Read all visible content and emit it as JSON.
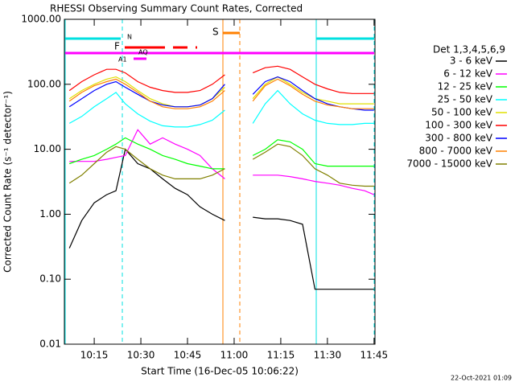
{
  "chart_data": {
    "type": "line",
    "title": "RHESSI Observing Summary Count Rates, Corrected",
    "x_label": "Start Time (16-Dec-05 10:06:22)",
    "y_label": "Corrected Count Rate (s⁻¹ detector⁻¹)",
    "legend_title": "Det 1,3,4,5,6,9",
    "footer": "22-Oct-2021 01:09",
    "log_y": true,
    "legend": "right",
    "flags": [
      {
        "label": "N",
        "color": "#00e0e0"
      },
      {
        "label": "F",
        "color": "#ff0000"
      },
      {
        "label": "AQ",
        "color": "#ff00ff"
      },
      {
        "label": "A1",
        "color": "#ff00ff"
      },
      {
        "label": "S",
        "color": "#ff8000"
      }
    ],
    "xlim": [
      605.4,
      705.3
    ],
    "xticks": [
      {
        "value": 615,
        "label": "10:15"
      },
      {
        "value": 630,
        "label": "10:30"
      },
      {
        "value": 645,
        "label": "10:45"
      },
      {
        "value": 660,
        "label": "11:00"
      },
      {
        "value": 675,
        "label": "11:15"
      },
      {
        "value": 690,
        "label": "11:30"
      },
      {
        "value": 705,
        "label": "11:45"
      }
    ],
    "ylim": [
      0.01,
      1000
    ],
    "yticks": [
      {
        "value": 0.01,
        "label": "0.01"
      },
      {
        "value": 0.1,
        "label": "0.10"
      },
      {
        "value": 1,
        "label": "1.00"
      },
      {
        "value": 10,
        "label": "10.00"
      },
      {
        "value": 100,
        "label": "100.00"
      },
      {
        "value": 1000,
        "label": "1000.00"
      }
    ],
    "x": [
      607,
      611,
      615,
      619,
      622,
      625,
      629,
      633,
      637,
      641,
      645,
      649,
      653,
      657,
      661,
      666,
      670,
      674,
      678,
      682,
      686,
      690,
      694,
      698,
      702,
      705
    ],
    "series": [
      {
        "name": "3 - 6 keV",
        "color": "#000000",
        "values": [
          0.3,
          0.8,
          1.5,
          2,
          2.3,
          10,
          6,
          5,
          3.5,
          2.5,
          2,
          1.3,
          1,
          0.8,
          null,
          0.9,
          0.85,
          0.85,
          0.8,
          0.7,
          0.07,
          0.07,
          0.07,
          0.07,
          0.07,
          0.07
        ]
      },
      {
        "name": "6 - 12 keV",
        "color": "#ff00ff",
        "values": [
          6.5,
          6.5,
          6.5,
          7,
          7.5,
          8,
          20,
          12,
          15,
          12,
          10,
          8,
          5,
          3.5,
          null,
          4,
          4,
          4,
          3.8,
          3.5,
          3.2,
          3,
          2.8,
          2.5,
          2.3,
          2
        ]
      },
      {
        "name": "12 - 25 keV",
        "color": "#00ff00",
        "values": [
          6,
          7,
          8,
          10,
          12,
          15,
          12,
          10,
          8,
          7,
          6,
          5.5,
          5,
          5,
          null,
          8,
          10,
          14,
          13,
          10,
          6,
          5.5,
          5.5,
          5.5,
          5.5,
          5.5
        ]
      },
      {
        "name": "25 - 50 keV",
        "color": "#00ffff",
        "values": [
          25,
          32,
          45,
          60,
          75,
          50,
          35,
          27,
          23,
          22,
          22,
          24,
          28,
          40,
          null,
          25,
          50,
          80,
          50,
          35,
          28,
          25,
          24,
          24,
          25,
          25
        ]
      },
      {
        "name": "50 - 100 keV",
        "color": "#e0e000",
        "values": [
          60,
          80,
          100,
          120,
          130,
          110,
          80,
          60,
          50,
          45,
          45,
          48,
          60,
          90,
          null,
          60,
          100,
          130,
          100,
          75,
          60,
          55,
          50,
          50,
          50,
          50
        ]
      },
      {
        "name": "100 - 300 keV",
        "color": "#ff0000",
        "values": [
          80,
          110,
          140,
          170,
          170,
          150,
          110,
          90,
          80,
          75,
          75,
          80,
          100,
          140,
          null,
          150,
          180,
          190,
          170,
          130,
          100,
          85,
          75,
          72,
          72,
          72
        ]
      },
      {
        "name": "300 - 800 keV",
        "color": "#0000ff",
        "values": [
          45,
          60,
          80,
          100,
          110,
          90,
          70,
          55,
          48,
          45,
          45,
          48,
          60,
          100,
          null,
          70,
          110,
          130,
          110,
          80,
          60,
          50,
          45,
          42,
          40,
          40
        ]
      },
      {
        "name": "800 - 7000 keV",
        "color": "#ff8000",
        "values": [
          55,
          75,
          95,
          110,
          120,
          100,
          75,
          55,
          45,
          42,
          42,
          45,
          55,
          80,
          null,
          55,
          95,
          120,
          95,
          70,
          55,
          48,
          45,
          42,
          42,
          42
        ]
      },
      {
        "name": "7000 - 15000 keV",
        "color": "#808000",
        "values": [
          3,
          4,
          6,
          9,
          11,
          10,
          7,
          5,
          4,
          3.5,
          3.5,
          3.5,
          4,
          5,
          null,
          7,
          9,
          12,
          11,
          8,
          5,
          4,
          3,
          2.8,
          2.7,
          2.7
        ]
      }
    ]
  }
}
